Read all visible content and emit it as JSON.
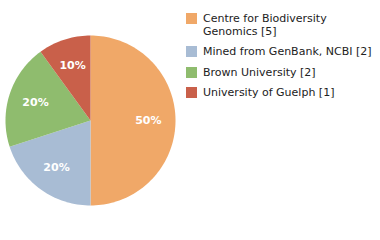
{
  "chart_data": {
    "type": "pie",
    "categories": [
      "Centre for Biodiversity\nGenomics [5]",
      "Mined from GenBank, NCBI [2]",
      "Brown University [2]",
      "University of Guelph [1]"
    ],
    "values": [
      50,
      20,
      20,
      10
    ],
    "value_labels": [
      "50%",
      "20%",
      "20%",
      "10%"
    ],
    "colors": [
      "#f0a868",
      "#a8bcd4",
      "#8fbc6e",
      "#c9604a"
    ],
    "data_labels": true,
    "legend": "right"
  }
}
